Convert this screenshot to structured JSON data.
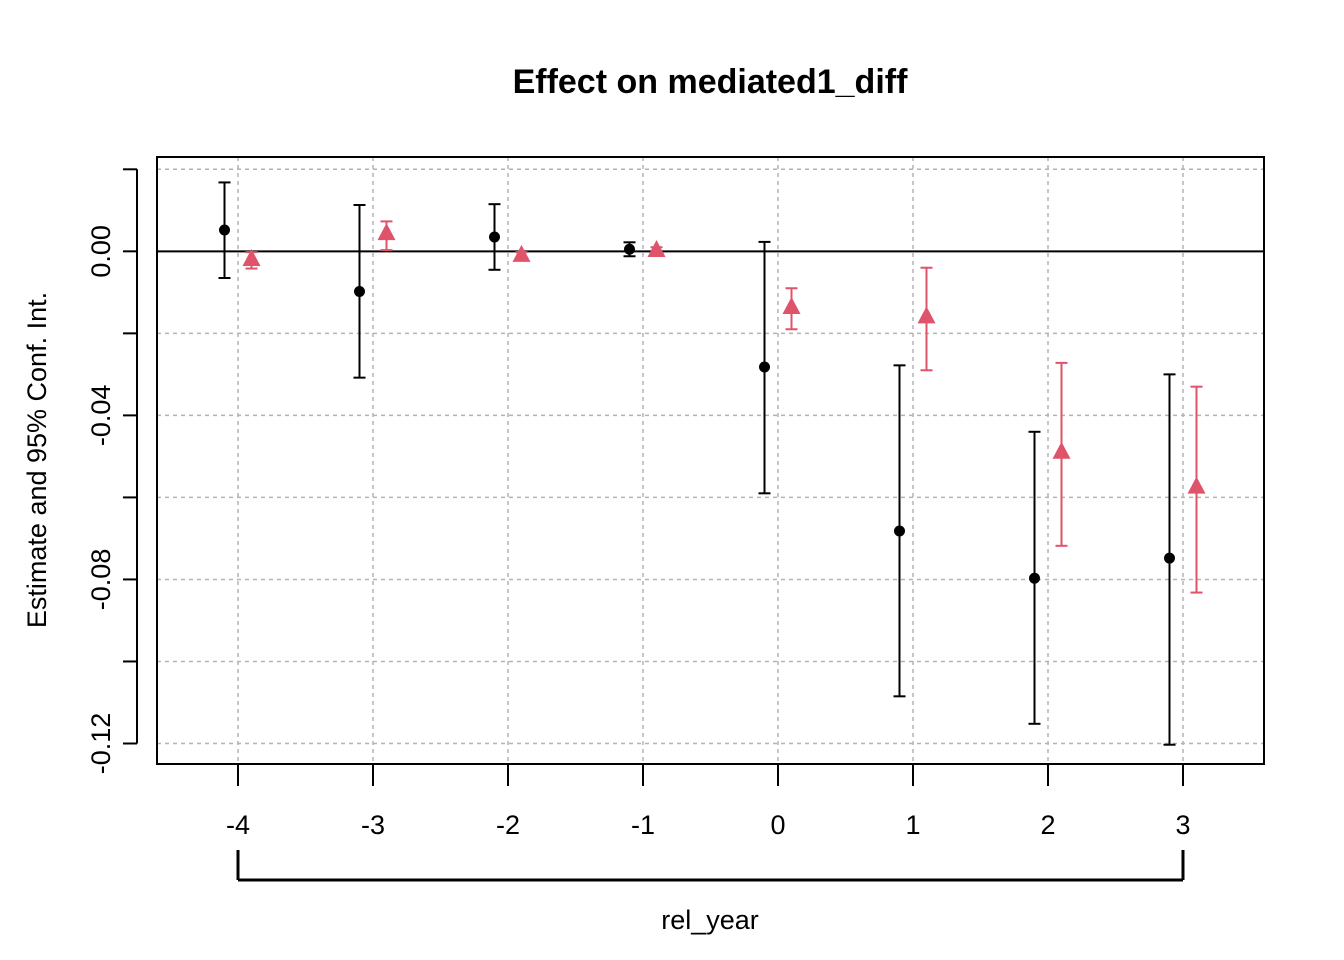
{
  "chart_data": {
    "type": "scatter",
    "title": "Effect on mediated1_diff",
    "xlabel": "rel_year",
    "ylabel": "Estimate and 95% Conf. Int.",
    "x_ticks": [
      "-4",
      "-3",
      "-2",
      "-1",
      "0",
      "1",
      "2",
      "3"
    ],
    "y_ticks": [
      "0.00",
      "-0.04",
      "-0.08",
      "-0.12"
    ],
    "y_tick_values": [
      0.0,
      -0.04,
      -0.08,
      -0.12
    ],
    "y_grid_values": [
      0.04,
      0.02,
      0.0,
      -0.02,
      -0.04,
      -0.06,
      -0.08,
      -0.1,
      -0.12
    ],
    "xlim": [
      -4.6,
      3.6
    ],
    "ylim": [
      -0.125,
      0.023
    ],
    "grid": true,
    "reference_line": 0,
    "categories": [
      -4,
      -3,
      -2,
      -1,
      0,
      1,
      2,
      3
    ],
    "series": [
      {
        "marker": "circle",
        "color": "#000000",
        "offset": -0.1,
        "values": [
          0.0052,
          -0.0098,
          0.0035,
          0.0005,
          -0.0282,
          -0.0682,
          -0.0797,
          -0.0748
        ],
        "ci_low": [
          -0.0065,
          -0.0308,
          -0.0045,
          -0.0012,
          -0.059,
          -0.1085,
          -0.1152,
          -0.1203
        ],
        "ci_high": [
          0.0168,
          0.0113,
          0.0115,
          0.0022,
          0.0023,
          -0.0278,
          -0.044,
          -0.03
        ]
      },
      {
        "marker": "triangle",
        "color": "#DF536B",
        "offset": 0.1,
        "values": [
          -0.002,
          0.0043,
          -0.001,
          0.0002,
          -0.0137,
          -0.016,
          -0.049,
          -0.0575
        ],
        "ci_low": [
          -0.0042,
          0.0003,
          -0.002,
          -0.0008,
          -0.019,
          -0.029,
          -0.0718,
          -0.0832
        ],
        "ci_high": [
          -0.0002,
          0.0073,
          -0.0002,
          0.001,
          -0.009,
          -0.004,
          -0.0272,
          -0.033
        ]
      }
    ]
  }
}
